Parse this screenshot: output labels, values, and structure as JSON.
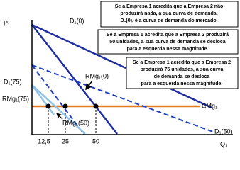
{
  "axes": {
    "y_label": "P₁",
    "x_label": "Q₁",
    "x_ticks": [
      "12,5",
      "25",
      "50"
    ]
  },
  "curves": {
    "d0": "D₁(0)",
    "rmg0": "RMg₁(0)",
    "d75": "D₁(75)",
    "rmg75": "RMg₁(75)",
    "rmg50": "RMg₁(50)",
    "d50": "D₁(50)",
    "cmg": "CMg₁"
  },
  "notes": [
    {
      "lines": [
        "Se a Empresa 1 acredita que a Empresa 2 não",
        "produzirá nada, a sua curva de demanda,",
        "D₁(0), é a curva de demanda do mercado."
      ]
    },
    {
      "lines": [
        "Se a Empresa 1 acredita que a Empresa 2 produzirá",
        "50 unidades, a sua curva de demanda se desloca",
        "para a esquerda nessa magnitude."
      ]
    },
    {
      "lines": [
        "Se a Empresa 1 acredita que a Empresa 2",
        "produzirá 75 unidades, a sua curva",
        "de demanda se desloca",
        "para a esquerda nessa magnitude."
      ]
    }
  ]
}
